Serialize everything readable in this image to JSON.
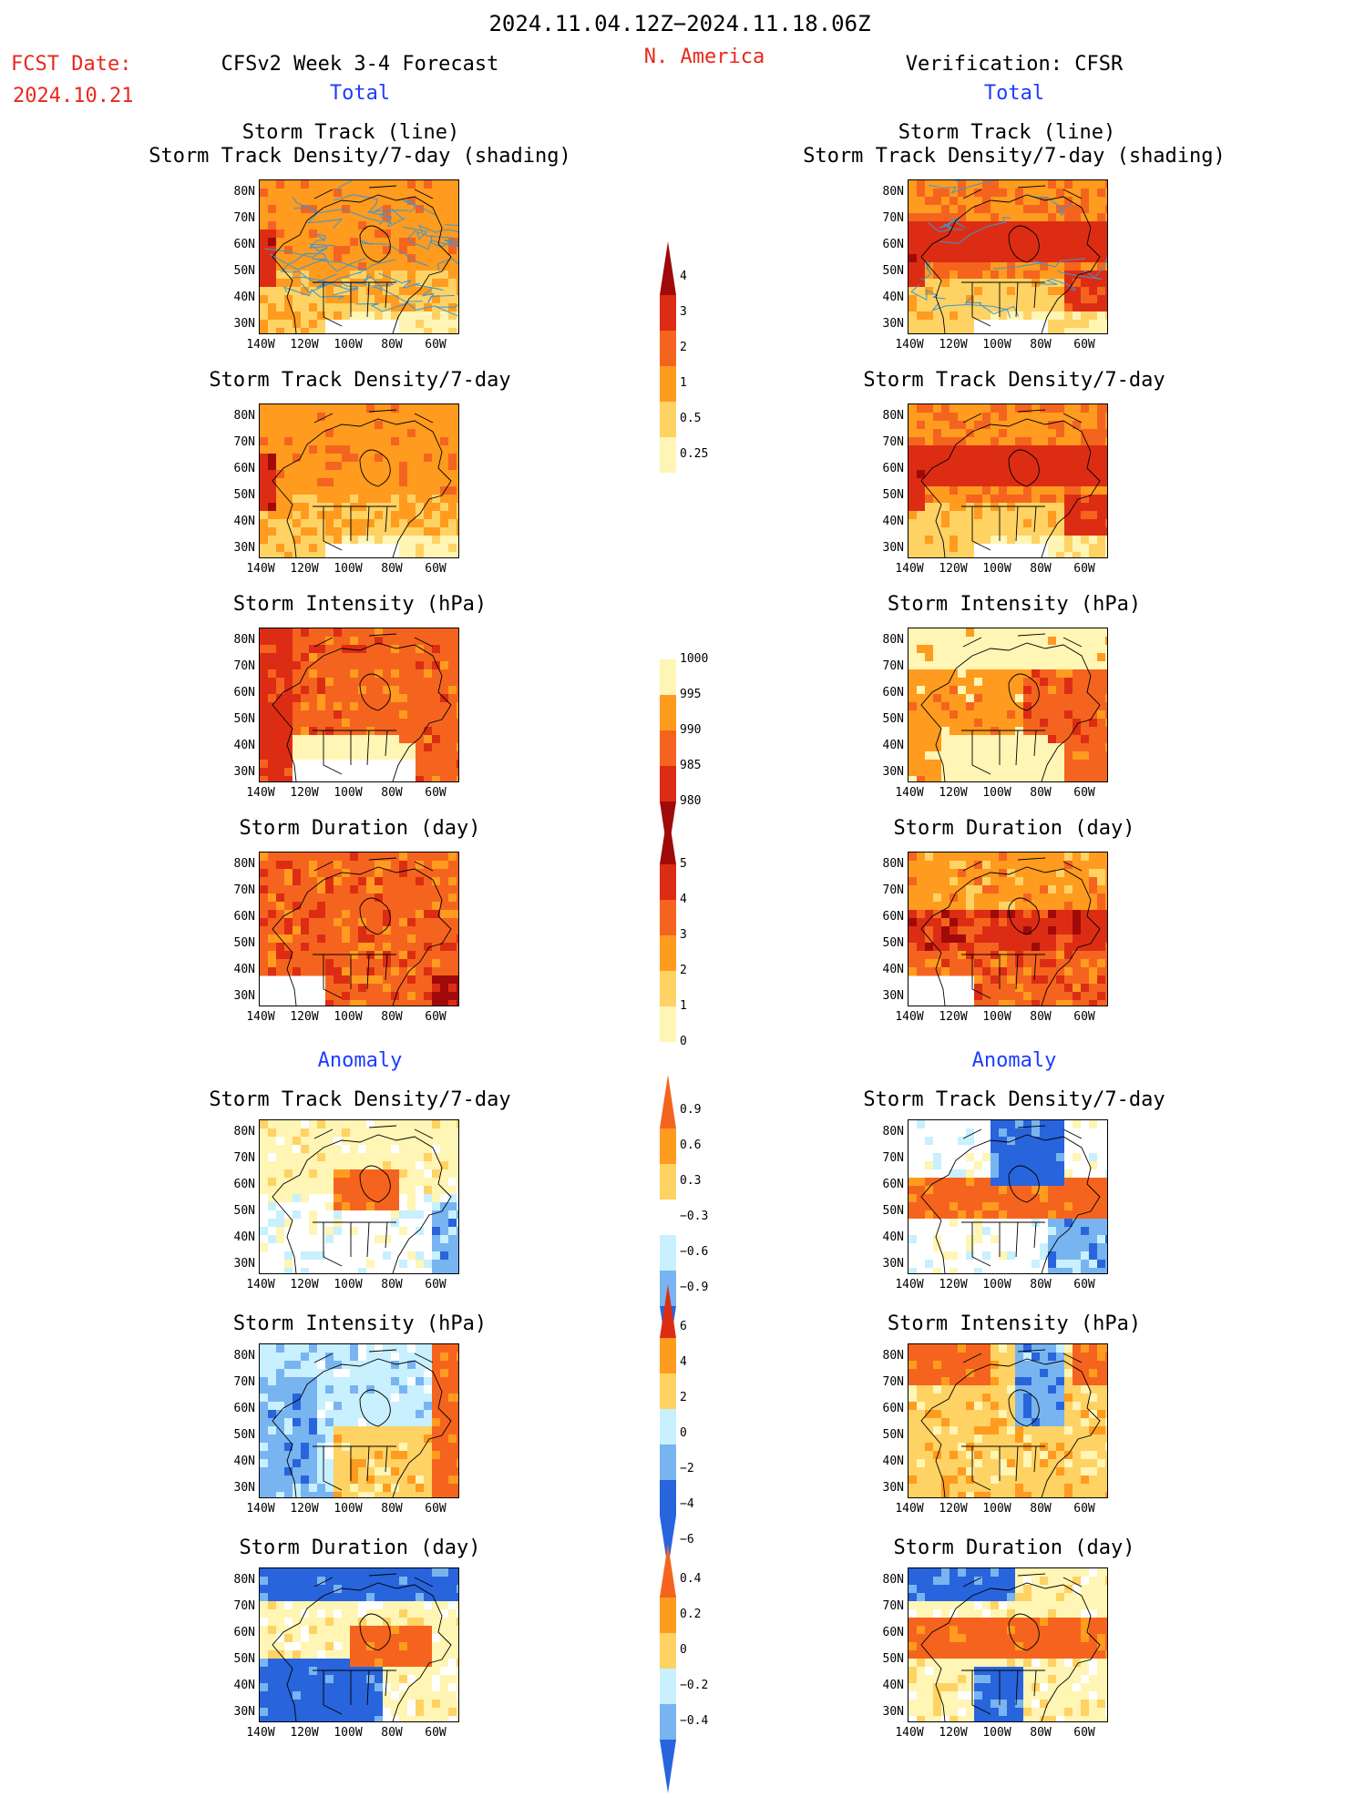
{
  "header": {
    "period": "2024.11.04.12Z−2024.11.18.06Z",
    "region": "N. America",
    "fcst_date_label": "FCST Date:",
    "fcst_date": "2024.10.21",
    "forecast_title": "CFSv2 Week 3-4 Forecast",
    "verification_title": "Verification: CFSR"
  },
  "sections": {
    "total": "Total",
    "anomaly": "Anomaly"
  },
  "panel_titles": {
    "track_line": "Storm Track (line)",
    "track_shading": "Storm Track Density/7-day (shading)",
    "density": "Storm Track Density/7-day",
    "intensity": "Storm Intensity (hPa)",
    "duration": "Storm Duration (day)"
  },
  "axes": {
    "lat_labels": [
      "80N",
      "70N",
      "60N",
      "50N",
      "40N",
      "30N"
    ],
    "lon_labels": [
      "140W",
      "120W",
      "100W",
      "80W",
      "60W"
    ]
  },
  "colorbars": {
    "total_density": [
      "4",
      "3",
      "2",
      "1",
      "0.5",
      "0.25"
    ],
    "total_intensity": [
      "1000",
      "995",
      "990",
      "985",
      "980"
    ],
    "total_duration": [
      "5",
      "4",
      "3",
      "2",
      "1",
      "0"
    ],
    "anom_density": [
      "0.9",
      "0.6",
      "0.3",
      "−0.3",
      "−0.6",
      "−0.9"
    ],
    "anom_intensity": [
      "6",
      "4",
      "2",
      "0",
      "−2",
      "−4",
      "−6"
    ],
    "anom_duration": [
      "0.4",
      "0.2",
      "0",
      "−0.2",
      "−0.4"
    ]
  },
  "colors": {
    "title_red": "#e8281e",
    "section_blue": "#1e3cff",
    "pale_yellow": "#fff5b4",
    "light_orange": "#ffd264",
    "orange": "#ff9b1e",
    "dark_orange": "#f5641e",
    "red": "#dc2d14",
    "dark_red": "#a00a0a",
    "light_blue": "#c8f0ff",
    "mid_blue": "#78b4f0",
    "blue": "#2864dc",
    "track_line": "#3c96d2"
  }
}
